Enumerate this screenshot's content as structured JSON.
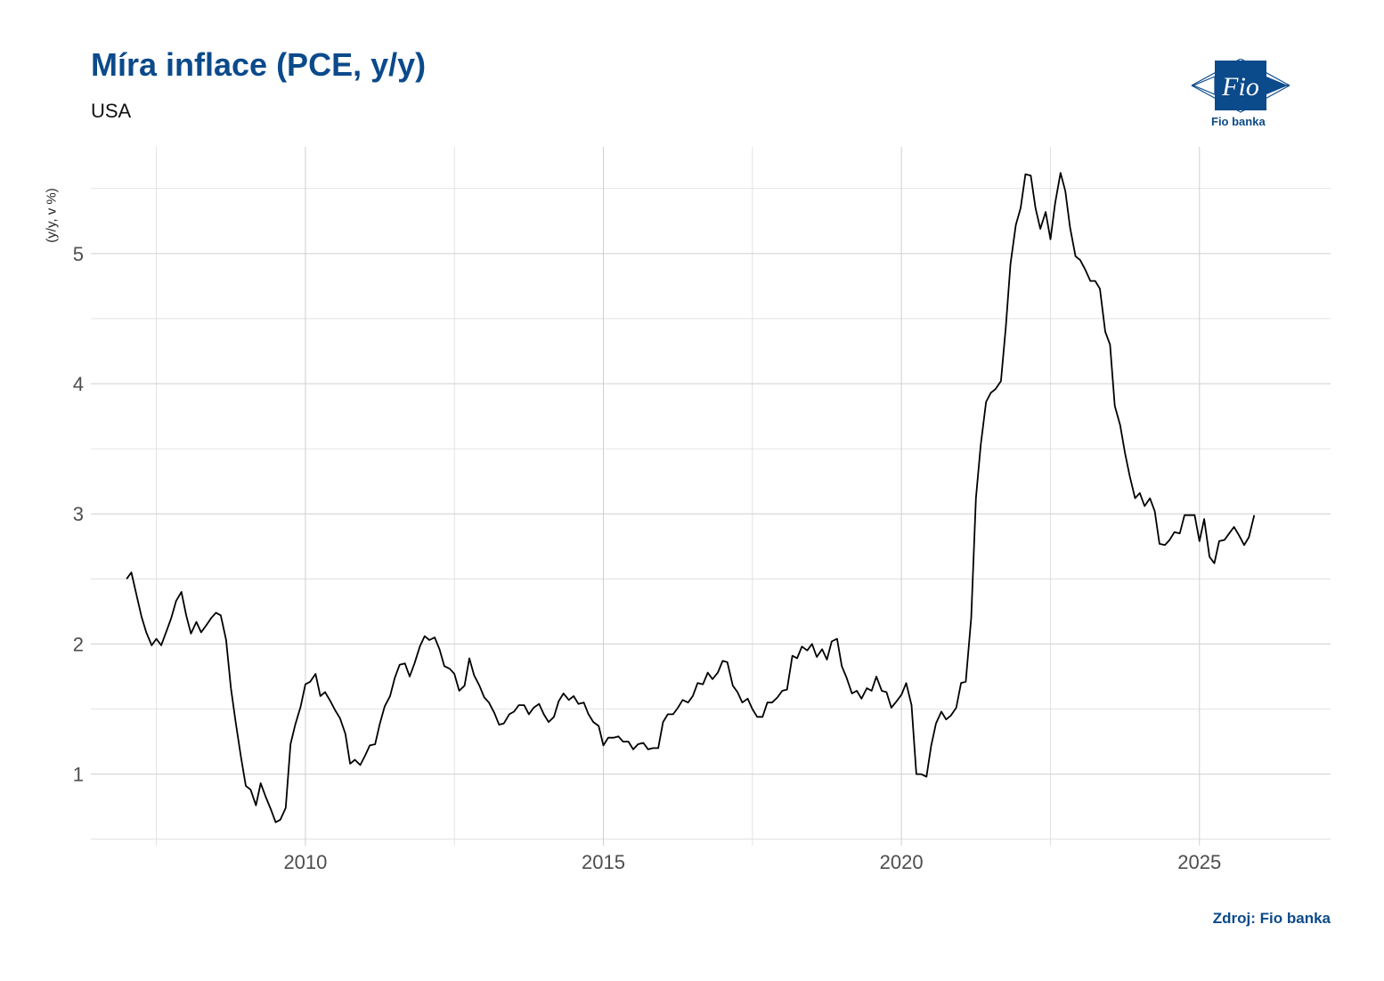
{
  "header": {
    "title": "Míra inflace (PCE, y/y)",
    "subtitle": "USA"
  },
  "logo": {
    "name": "Fio",
    "caption": "Fio banka",
    "color": "#0b4a8b"
  },
  "source": "Zdroj: Fio banka",
  "chart_data": {
    "type": "line",
    "title": "Míra inflace (PCE, y/y)",
    "subtitle": "USA",
    "ylabel": "(y/y, v %)",
    "xlabel": "",
    "xlim": [
      2006.4,
      2027.2
    ],
    "ylim": [
      0.45,
      5.82
    ],
    "x_ticks": [
      2010,
      2015,
      2020,
      2025
    ],
    "y_ticks": [
      1,
      2,
      3,
      4,
      5
    ],
    "grid": true,
    "line_color": "#000000",
    "series": [
      {
        "points": [
          [
            2007.0,
            2.5
          ],
          [
            2007.08,
            2.55
          ],
          [
            2007.17,
            2.37
          ],
          [
            2007.25,
            2.21
          ],
          [
            2007.33,
            2.09
          ],
          [
            2007.42,
            1.99
          ],
          [
            2007.5,
            2.04
          ],
          [
            2007.58,
            1.99
          ],
          [
            2007.67,
            2.1
          ],
          [
            2007.75,
            2.2
          ],
          [
            2007.83,
            2.33
          ],
          [
            2007.92,
            2.4
          ],
          [
            2008.0,
            2.22
          ],
          [
            2008.08,
            2.08
          ],
          [
            2008.17,
            2.17
          ],
          [
            2008.25,
            2.09
          ],
          [
            2008.33,
            2.14
          ],
          [
            2008.42,
            2.2
          ],
          [
            2008.5,
            2.24
          ],
          [
            2008.58,
            2.22
          ],
          [
            2008.67,
            2.03
          ],
          [
            2008.75,
            1.66
          ],
          [
            2008.83,
            1.4
          ],
          [
            2008.92,
            1.13
          ],
          [
            2009.0,
            0.91
          ],
          [
            2009.08,
            0.88
          ],
          [
            2009.17,
            0.76
          ],
          [
            2009.25,
            0.93
          ],
          [
            2009.33,
            0.83
          ],
          [
            2009.42,
            0.73
          ],
          [
            2009.5,
            0.63
          ],
          [
            2009.58,
            0.65
          ],
          [
            2009.67,
            0.74
          ],
          [
            2009.75,
            1.23
          ],
          [
            2009.83,
            1.38
          ],
          [
            2009.92,
            1.52
          ],
          [
            2010.0,
            1.69
          ],
          [
            2010.08,
            1.71
          ],
          [
            2010.17,
            1.77
          ],
          [
            2010.25,
            1.6
          ],
          [
            2010.33,
            1.63
          ],
          [
            2010.42,
            1.56
          ],
          [
            2010.5,
            1.49
          ],
          [
            2010.58,
            1.43
          ],
          [
            2010.67,
            1.31
          ],
          [
            2010.75,
            1.08
          ],
          [
            2010.83,
            1.11
          ],
          [
            2010.92,
            1.07
          ],
          [
            2011.0,
            1.14
          ],
          [
            2011.08,
            1.22
          ],
          [
            2011.17,
            1.23
          ],
          [
            2011.25,
            1.39
          ],
          [
            2011.33,
            1.52
          ],
          [
            2011.42,
            1.6
          ],
          [
            2011.5,
            1.74
          ],
          [
            2011.58,
            1.84
          ],
          [
            2011.67,
            1.85
          ],
          [
            2011.75,
            1.75
          ],
          [
            2011.83,
            1.85
          ],
          [
            2011.92,
            1.98
          ],
          [
            2012.0,
            2.06
          ],
          [
            2012.08,
            2.03
          ],
          [
            2012.17,
            2.05
          ],
          [
            2012.25,
            1.96
          ],
          [
            2012.33,
            1.83
          ],
          [
            2012.42,
            1.81
          ],
          [
            2012.5,
            1.77
          ],
          [
            2012.58,
            1.64
          ],
          [
            2012.67,
            1.68
          ],
          [
            2012.75,
            1.89
          ],
          [
            2012.83,
            1.76
          ],
          [
            2012.92,
            1.68
          ],
          [
            2013.0,
            1.59
          ],
          [
            2013.08,
            1.55
          ],
          [
            2013.17,
            1.47
          ],
          [
            2013.25,
            1.38
          ],
          [
            2013.33,
            1.39
          ],
          [
            2013.42,
            1.46
          ],
          [
            2013.5,
            1.48
          ],
          [
            2013.58,
            1.53
          ],
          [
            2013.67,
            1.53
          ],
          [
            2013.75,
            1.46
          ],
          [
            2013.83,
            1.51
          ],
          [
            2013.92,
            1.54
          ],
          [
            2014.0,
            1.46
          ],
          [
            2014.08,
            1.4
          ],
          [
            2014.17,
            1.44
          ],
          [
            2014.25,
            1.56
          ],
          [
            2014.33,
            1.62
          ],
          [
            2014.42,
            1.57
          ],
          [
            2014.5,
            1.6
          ],
          [
            2014.58,
            1.54
          ],
          [
            2014.67,
            1.55
          ],
          [
            2014.75,
            1.46
          ],
          [
            2014.83,
            1.4
          ],
          [
            2014.92,
            1.37
          ],
          [
            2015.0,
            1.22
          ],
          [
            2015.08,
            1.28
          ],
          [
            2015.17,
            1.28
          ],
          [
            2015.25,
            1.29
          ],
          [
            2015.33,
            1.25
          ],
          [
            2015.42,
            1.25
          ],
          [
            2015.5,
            1.19
          ],
          [
            2015.58,
            1.23
          ],
          [
            2015.67,
            1.24
          ],
          [
            2015.75,
            1.19
          ],
          [
            2015.83,
            1.2
          ],
          [
            2015.92,
            1.2
          ],
          [
            2016.0,
            1.4
          ],
          [
            2016.08,
            1.46
          ],
          [
            2016.17,
            1.46
          ],
          [
            2016.25,
            1.51
          ],
          [
            2016.33,
            1.57
          ],
          [
            2016.42,
            1.55
          ],
          [
            2016.5,
            1.6
          ],
          [
            2016.58,
            1.7
          ],
          [
            2016.67,
            1.69
          ],
          [
            2016.75,
            1.78
          ],
          [
            2016.83,
            1.73
          ],
          [
            2016.92,
            1.78
          ],
          [
            2017.0,
            1.87
          ],
          [
            2017.08,
            1.86
          ],
          [
            2017.17,
            1.68
          ],
          [
            2017.25,
            1.63
          ],
          [
            2017.33,
            1.55
          ],
          [
            2017.42,
            1.58
          ],
          [
            2017.5,
            1.5
          ],
          [
            2017.58,
            1.44
          ],
          [
            2017.67,
            1.44
          ],
          [
            2017.75,
            1.55
          ],
          [
            2017.83,
            1.55
          ],
          [
            2017.92,
            1.59
          ],
          [
            2018.0,
            1.64
          ],
          [
            2018.08,
            1.65
          ],
          [
            2018.17,
            1.91
          ],
          [
            2018.25,
            1.89
          ],
          [
            2018.33,
            1.98
          ],
          [
            2018.42,
            1.95
          ],
          [
            2018.5,
            2.0
          ],
          [
            2018.58,
            1.9
          ],
          [
            2018.67,
            1.96
          ],
          [
            2018.75,
            1.88
          ],
          [
            2018.83,
            2.02
          ],
          [
            2018.92,
            2.04
          ],
          [
            2019.0,
            1.83
          ],
          [
            2019.08,
            1.74
          ],
          [
            2019.17,
            1.62
          ],
          [
            2019.25,
            1.64
          ],
          [
            2019.33,
            1.58
          ],
          [
            2019.42,
            1.66
          ],
          [
            2019.5,
            1.64
          ],
          [
            2019.58,
            1.75
          ],
          [
            2019.67,
            1.64
          ],
          [
            2019.75,
            1.63
          ],
          [
            2019.83,
            1.51
          ],
          [
            2019.92,
            1.56
          ],
          [
            2020.0,
            1.61
          ],
          [
            2020.08,
            1.7
          ],
          [
            2020.17,
            1.53
          ],
          [
            2020.25,
            1.0
          ],
          [
            2020.33,
            1.0
          ],
          [
            2020.42,
            0.98
          ],
          [
            2020.5,
            1.22
          ],
          [
            2020.58,
            1.39
          ],
          [
            2020.67,
            1.48
          ],
          [
            2020.75,
            1.42
          ],
          [
            2020.83,
            1.45
          ],
          [
            2020.92,
            1.51
          ],
          [
            2021.0,
            1.7
          ],
          [
            2021.08,
            1.71
          ],
          [
            2021.17,
            2.2
          ],
          [
            2021.25,
            3.12
          ],
          [
            2021.33,
            3.53
          ],
          [
            2021.42,
            3.86
          ],
          [
            2021.5,
            3.93
          ],
          [
            2021.58,
            3.96
          ],
          [
            2021.67,
            4.02
          ],
          [
            2021.75,
            4.43
          ],
          [
            2021.83,
            4.92
          ],
          [
            2021.92,
            5.22
          ],
          [
            2022.0,
            5.35
          ],
          [
            2022.08,
            5.61
          ],
          [
            2022.17,
            5.6
          ],
          [
            2022.25,
            5.35
          ],
          [
            2022.33,
            5.19
          ],
          [
            2022.42,
            5.32
          ],
          [
            2022.5,
            5.11
          ],
          [
            2022.58,
            5.39
          ],
          [
            2022.67,
            5.62
          ],
          [
            2022.75,
            5.48
          ],
          [
            2022.83,
            5.2
          ],
          [
            2022.92,
            4.98
          ],
          [
            2023.0,
            4.95
          ],
          [
            2023.08,
            4.88
          ],
          [
            2023.17,
            4.79
          ],
          [
            2023.25,
            4.79
          ],
          [
            2023.33,
            4.73
          ],
          [
            2023.42,
            4.4
          ],
          [
            2023.5,
            4.3
          ],
          [
            2023.58,
            3.83
          ],
          [
            2023.67,
            3.68
          ],
          [
            2023.75,
            3.47
          ],
          [
            2023.83,
            3.29
          ],
          [
            2023.92,
            3.12
          ],
          [
            2024.0,
            3.16
          ],
          [
            2024.08,
            3.06
          ],
          [
            2024.17,
            3.12
          ],
          [
            2024.25,
            3.02
          ],
          [
            2024.33,
            2.77
          ],
          [
            2024.42,
            2.76
          ],
          [
            2024.5,
            2.8
          ],
          [
            2024.58,
            2.86
          ],
          [
            2024.67,
            2.85
          ],
          [
            2024.75,
            2.99
          ],
          [
            2024.83,
            2.99
          ],
          [
            2024.92,
            2.99
          ],
          [
            2025.0,
            2.79
          ],
          [
            2025.08,
            2.96
          ],
          [
            2025.17,
            2.67
          ],
          [
            2025.25,
            2.62
          ],
          [
            2025.33,
            2.79
          ],
          [
            2025.42,
            2.8
          ],
          [
            2025.5,
            2.85
          ],
          [
            2025.58,
            2.9
          ],
          [
            2025.67,
            2.83
          ],
          [
            2025.75,
            2.76
          ],
          [
            2025.83,
            2.82
          ],
          [
            2025.92,
            2.99
          ]
        ]
      }
    ]
  }
}
